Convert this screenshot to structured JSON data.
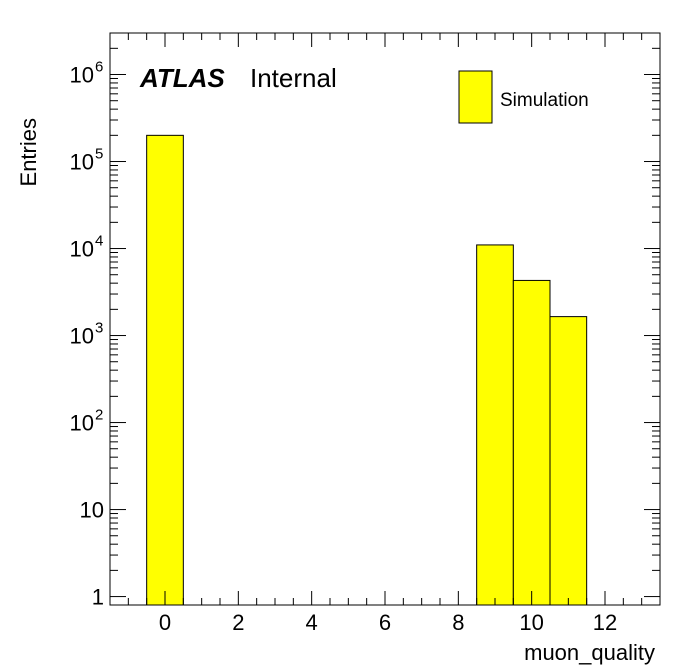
{
  "chart_data": {
    "type": "bar",
    "xlabel": "muon_quality",
    "ylabel": "Entries",
    "yscale": "log",
    "xlim": [
      -1.5,
      13.5
    ],
    "ylim": [
      0.8,
      3000000
    ],
    "bin_width": 1,
    "bins": [
      {
        "center": 0,
        "value": 200000
      },
      {
        "center": 9,
        "value": 11000
      },
      {
        "center": 10,
        "value": 4300
      },
      {
        "center": 11,
        "value": 1650
      }
    ],
    "x_ticks": [
      "0",
      "2",
      "4",
      "6",
      "8",
      "10",
      "12"
    ],
    "x_tick_values": [
      0,
      2,
      4,
      6,
      8,
      10,
      12
    ],
    "y_ticks": [
      {
        "value": 1,
        "base": "1",
        "exp": ""
      },
      {
        "value": 10,
        "base": "10",
        "exp": ""
      },
      {
        "value": 100,
        "base": "10",
        "exp": "2"
      },
      {
        "value": 1000,
        "base": "10",
        "exp": "3"
      },
      {
        "value": 10000,
        "base": "10",
        "exp": "4"
      },
      {
        "value": 100000,
        "base": "10",
        "exp": "5"
      },
      {
        "value": 1000000,
        "base": "10",
        "exp": "6"
      }
    ],
    "legend": [
      {
        "name": "Simulation",
        "color": "#ffff00"
      }
    ],
    "legend_position": "top-right",
    "annotation": {
      "bold": "ATLAS",
      "text": "Internal"
    },
    "fill_color": "#ffff00",
    "line_color": "#000000",
    "grid": false
  }
}
